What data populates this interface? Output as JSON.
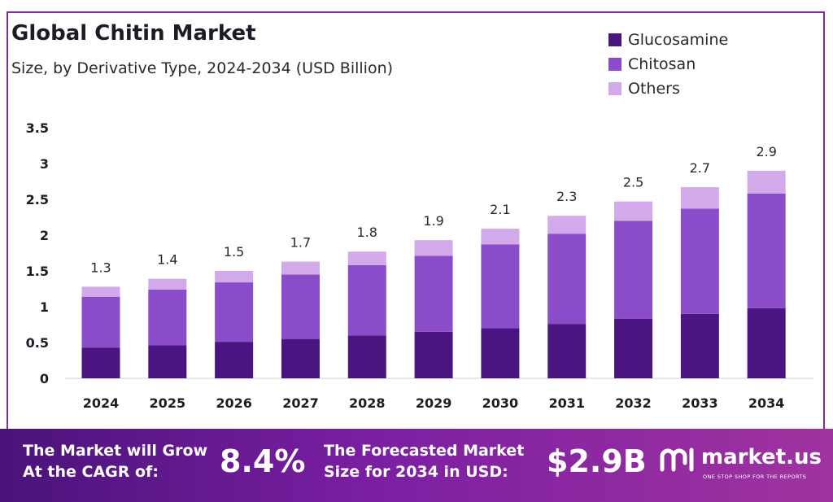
{
  "header": {
    "title": "Global Chitin Market",
    "subtitle": "Size, by Derivative Type, 2024-2034 (USD Billion)"
  },
  "legend": [
    {
      "label": "Glucosamine",
      "color": "#4a1580"
    },
    {
      "label": "Chitosan",
      "color": "#8a4cc9"
    },
    {
      "label": "Others",
      "color": "#d3aae9"
    }
  ],
  "chart_data": {
    "type": "bar",
    "stacked": true,
    "categories": [
      "2024",
      "2025",
      "2026",
      "2027",
      "2028",
      "2029",
      "2030",
      "2031",
      "2032",
      "2033",
      "2034"
    ],
    "series": [
      {
        "name": "Glucosamine",
        "values": [
          0.43,
          0.46,
          0.51,
          0.55,
          0.6,
          0.65,
          0.7,
          0.76,
          0.83,
          0.9,
          0.98
        ]
      },
      {
        "name": "Chitosan",
        "values": [
          0.71,
          0.78,
          0.83,
          0.9,
          0.98,
          1.06,
          1.17,
          1.26,
          1.37,
          1.47,
          1.6
        ]
      },
      {
        "name": "Others",
        "values": [
          0.14,
          0.15,
          0.16,
          0.18,
          0.19,
          0.22,
          0.22,
          0.25,
          0.27,
          0.3,
          0.32
        ]
      }
    ],
    "totals": [
      "1.3",
      "1.4",
      "1.5",
      "1.7",
      "1.8",
      "1.9",
      "2.1",
      "2.3",
      "2.5",
      "2.7",
      "2.9"
    ],
    "y_ticks": [
      "0",
      "0.5",
      "1",
      "1.5",
      "2",
      "2.5",
      "3",
      "3.5"
    ],
    "ylim": [
      0,
      3.5
    ],
    "grid": false,
    "legend_position": "top-right"
  },
  "footer": {
    "cagr_label_line1": "The Market will Grow",
    "cagr_label_line2": "At the CAGR of:",
    "cagr_value": "8.4%",
    "forecast_label_line1": "The Forecasted Market",
    "forecast_label_line2": "Size for 2034 in USD:",
    "forecast_value": "$2.9B",
    "brand_name": "market.us",
    "brand_tagline": "ONE STOP SHOP FOR THE REPORTS"
  }
}
